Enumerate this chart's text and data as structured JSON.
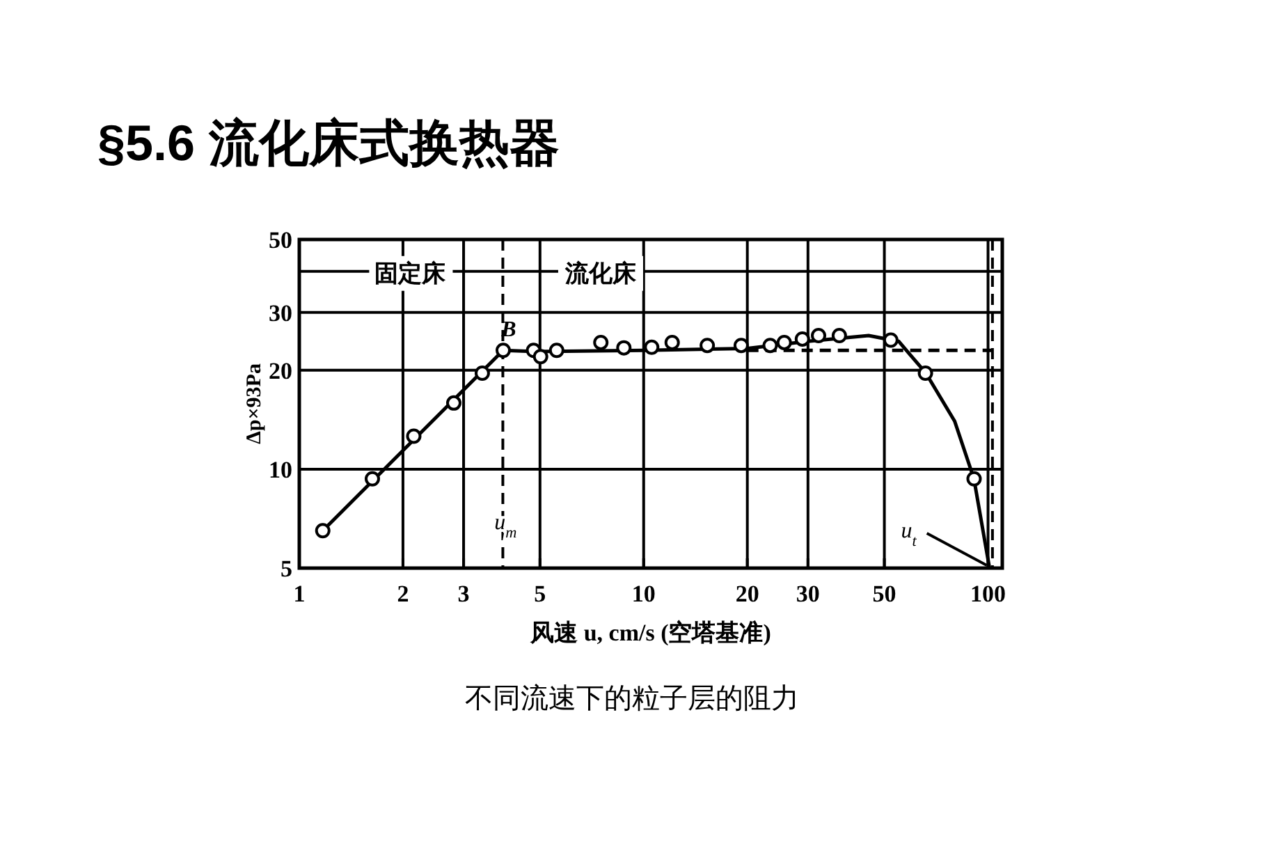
{
  "chart_data": {
    "type": "line",
    "title": "§5.6 流化床式换热器",
    "xlabel": "风速 u, cm/s (空塔基准)",
    "ylabel": "Δp×93Pa",
    "log": "xy",
    "xlim": [
      1,
      110
    ],
    "ylim": [
      5,
      50
    ],
    "xticks": [
      1,
      2,
      3,
      5,
      10,
      20,
      30,
      50,
      100
    ],
    "yticks": [
      5,
      10,
      20,
      30,
      50
    ],
    "grid": true,
    "series": [
      {
        "type": "scatter",
        "color": "#000000",
        "marker": "circle",
        "x": [
          1.17,
          1.63,
          2.15,
          2.81,
          3.4,
          3.91,
          4.79,
          5.02,
          5.59,
          7.51,
          8.76,
          10.55,
          12.1,
          15.3,
          19.2,
          23.3,
          25.6,
          28.9,
          32.2,
          37,
          52.2,
          65.8,
          91.1
        ],
        "values": [
          6.5,
          9.35,
          12.6,
          15.9,
          19.6,
          23,
          23,
          22,
          23,
          24.3,
          23.4,
          23.5,
          24.3,
          23.8,
          23.8,
          23.8,
          24.3,
          24.9,
          25.5,
          25.5,
          24.7,
          19.6,
          9.35
        ]
      },
      {
        "color": "#000000",
        "x": [
          1.17,
          3.91,
          4.8,
          10,
          20,
          30,
          45,
          55,
          66,
          80,
          91,
          101
        ],
        "values": [
          6.5,
          23,
          22.8,
          23,
          23.3,
          24.5,
          25.5,
          24.5,
          19.6,
          14,
          9.35,
          5
        ]
      },
      {
        "color": "#000000",
        "line_style": "dashed",
        "x": [
          20,
          103
        ],
        "values": [
          23,
          23
        ]
      }
    ],
    "ref_lines": [
      {
        "axis": "x",
        "value": 3.9,
        "line_style": "dashed",
        "label": "u$_{m}$"
      },
      {
        "axis": "x",
        "value": 103,
        "line_style": "dashed"
      },
      {
        "axis": "y",
        "value": 40
      }
    ],
    "annotations": [
      {
        "text": "B",
        "x": 3.91,
        "y": 23
      },
      {
        "text": "固定床",
        "x": 2.1,
        "y": 40
      },
      {
        "text": "流化床",
        "x": 7.5,
        "y": 40
      },
      {
        "text": "u$_{t}$",
        "x": 101,
        "y": 5
      },
      "不同流速下的粒子层的阻力"
    ]
  }
}
